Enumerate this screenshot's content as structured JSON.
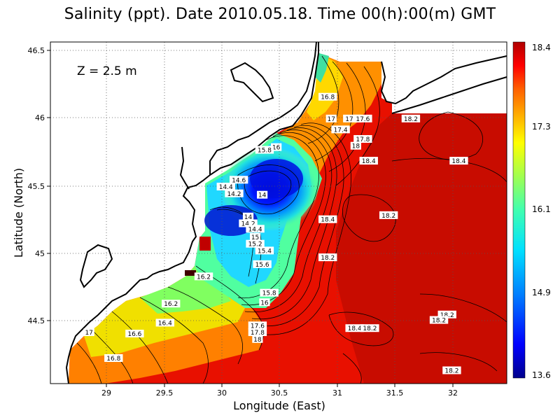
{
  "title": "Salinity (ppt). Date 2010.05.18. Time 00(h):00(m) GMT",
  "depth_label": "Z = 2.5 m",
  "chart_data": {
    "type": "map",
    "title": "Salinity (ppt). Date 2010.05.18. Time 00(h):00(m) GMT",
    "xlabel": "Longitude (East)",
    "ylabel": "Latitude (North)",
    "xlim": [
      28.55,
      32.45
    ],
    "ylim": [
      44.04,
      46.55
    ],
    "x_ticks": [
      "29",
      "29.5",
      "30",
      "30.5",
      "31",
      "31.5",
      "32"
    ],
    "y_ticks": [
      "44.5",
      "45",
      "45.5",
      "46",
      "46.5"
    ],
    "grid": true,
    "colorbar": {
      "min": 13.6,
      "max": 18.4,
      "tick_labels": [
        "18.4",
        "17.3",
        "16.1",
        "14.9",
        "13.6"
      ],
      "colors": [
        "#00008c",
        "#0000ff",
        "#0080ff",
        "#00e0ff",
        "#40ffb0",
        "#a0ff50",
        "#ffff00",
        "#ffb000",
        "#ff6000",
        "#ff0000",
        "#b00000"
      ]
    },
    "contour_labels": [
      {
        "text": "16.8",
        "lon": 30.92,
        "lat": 46.14
      },
      {
        "text": "17",
        "lon": 30.95,
        "lat": 45.98
      },
      {
        "text": "17.2",
        "lon": 31.13,
        "lat": 45.98
      },
      {
        "text": "17.6",
        "lon": 31.22,
        "lat": 45.98
      },
      {
        "text": "17.4",
        "lon": 31.03,
        "lat": 45.9
      },
      {
        "text": "17.8",
        "lon": 31.22,
        "lat": 45.83
      },
      {
        "text": "18",
        "lon": 31.16,
        "lat": 45.78
      },
      {
        "text": "18.2",
        "lon": 31.63,
        "lat": 45.98
      },
      {
        "text": "18.4",
        "lon": 31.27,
        "lat": 45.67
      },
      {
        "text": "18.4",
        "lon": 32.04,
        "lat": 45.67
      },
      {
        "text": "16",
        "lon": 30.48,
        "lat": 45.77
      },
      {
        "text": "15.8",
        "lon": 30.38,
        "lat": 45.75
      },
      {
        "text": "14.6",
        "lon": 30.16,
        "lat": 45.53
      },
      {
        "text": "14.4",
        "lon": 30.05,
        "lat": 45.48
      },
      {
        "text": "14.2",
        "lon": 30.12,
        "lat": 45.43
      },
      {
        "text": "14",
        "lon": 30.36,
        "lat": 45.42
      },
      {
        "text": "14",
        "lon": 30.24,
        "lat": 45.26
      },
      {
        "text": "14.2",
        "lon": 30.24,
        "lat": 45.21
      },
      {
        "text": "14.4",
        "lon": 30.3,
        "lat": 45.17
      },
      {
        "text": "15",
        "lon": 30.3,
        "lat": 45.11
      },
      {
        "text": "15.2",
        "lon": 30.3,
        "lat": 45.06
      },
      {
        "text": "15.4",
        "lon": 30.38,
        "lat": 45.01
      },
      {
        "text": "15.6",
        "lon": 30.36,
        "lat": 44.91
      },
      {
        "text": "16.2",
        "lon": 29.86,
        "lat": 44.82
      },
      {
        "text": "18.4",
        "lon": 30.92,
        "lat": 45.24
      },
      {
        "text": "18.2",
        "lon": 31.44,
        "lat": 45.27
      },
      {
        "text": "18.2",
        "lon": 30.92,
        "lat": 44.96
      },
      {
        "text": "15.8",
        "lon": 30.42,
        "lat": 44.7
      },
      {
        "text": "16",
        "lon": 30.38,
        "lat": 44.63
      },
      {
        "text": "16.2",
        "lon": 29.58,
        "lat": 44.62
      },
      {
        "text": "16.4",
        "lon": 29.53,
        "lat": 44.48
      },
      {
        "text": "16.6",
        "lon": 29.27,
        "lat": 44.4
      },
      {
        "text": "16.8",
        "lon": 29.09,
        "lat": 44.22
      },
      {
        "text": "17",
        "lon": 28.88,
        "lat": 44.41
      },
      {
        "text": "17.6",
        "lon": 30.32,
        "lat": 44.46
      },
      {
        "text": "17.8",
        "lon": 30.32,
        "lat": 44.41
      },
      {
        "text": "18",
        "lon": 30.32,
        "lat": 44.36
      },
      {
        "text": "18.4",
        "lon": 31.15,
        "lat": 44.44
      },
      {
        "text": "18.2",
        "lon": 31.28,
        "lat": 44.44
      },
      {
        "text": "18.2",
        "lon": 31.94,
        "lat": 44.54
      },
      {
        "text": "18.2",
        "lon": 31.87,
        "lat": 44.5
      },
      {
        "text": "18.2",
        "lon": 31.98,
        "lat": 44.13
      }
    ]
  }
}
